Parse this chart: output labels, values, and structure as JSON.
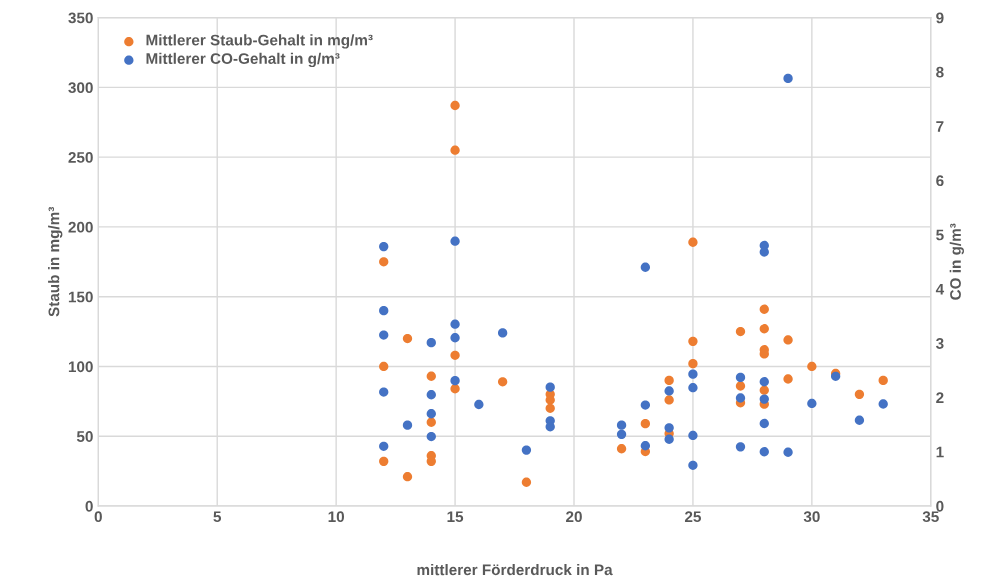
{
  "chart_data": {
    "type": "scatter",
    "xlabel": "mittlerer Förderdruck in Pa",
    "ylabel": "Staub in mg/m³",
    "y2label": "CO in g/m³",
    "xlim": [
      0,
      35
    ],
    "xticks": [
      0,
      5,
      10,
      15,
      20,
      25,
      30,
      35
    ],
    "ylim": [
      0,
      350
    ],
    "yticks": [
      0,
      50,
      100,
      150,
      200,
      250,
      300,
      350
    ],
    "y2lim": [
      0,
      9
    ],
    "y2ticks": [
      0,
      1,
      2,
      3,
      4,
      5,
      6,
      7,
      8,
      9
    ],
    "grid": true,
    "legend": "top left",
    "marker": "circle",
    "series": [
      {
        "name": "Mittlerer Staub-Gehalt in mg/m³",
        "color": "#ed7d31",
        "axis": "y",
        "x": [
          12,
          12,
          12,
          13,
          13,
          14,
          14,
          14,
          14,
          15,
          15,
          15,
          15,
          17,
          18,
          19,
          19,
          19,
          22,
          23,
          23,
          24,
          24,
          24,
          25,
          25,
          25,
          27,
          27,
          27,
          28,
          28,
          28,
          28,
          28,
          28,
          29,
          29,
          30,
          31,
          32,
          33
        ],
        "values": [
          175,
          100,
          32,
          120,
          21,
          93,
          60,
          36,
          32,
          287,
          255,
          108,
          84,
          89,
          17,
          80,
          76,
          70,
          41,
          59,
          39,
          90,
          76,
          52,
          189,
          118,
          102,
          125,
          86,
          74,
          141,
          127,
          112,
          109,
          83,
          73,
          119,
          91,
          100,
          95,
          80,
          90
        ]
      },
      {
        "name": "Mittlerer CO-Gehalt in g/m³",
        "color": "#4472c4",
        "axis": "y2",
        "x": [
          12,
          12,
          12,
          12,
          12,
          13,
          14,
          14,
          14,
          14,
          15,
          15,
          15,
          15,
          16,
          17,
          18,
          19,
          19,
          19,
          22,
          22,
          23,
          23,
          23,
          24,
          24,
          24,
          25,
          25,
          25,
          25,
          27,
          27,
          27,
          28,
          28,
          28,
          28,
          28,
          28,
          29,
          29,
          30,
          31,
          32,
          33
        ],
        "values": [
          4.78,
          3.6,
          3.15,
          2.1,
          1.1,
          1.49,
          3.01,
          2.05,
          1.7,
          1.28,
          4.88,
          3.35,
          3.1,
          2.31,
          1.87,
          3.19,
          1.03,
          2.19,
          1.57,
          1.46,
          1.49,
          1.32,
          4.4,
          1.86,
          1.11,
          2.12,
          1.44,
          1.23,
          2.43,
          2.18,
          1.3,
          0.75,
          2.37,
          1.99,
          1.09,
          4.8,
          4.68,
          2.29,
          1.97,
          1.52,
          1.0,
          7.88,
          0.99,
          1.89,
          2.39,
          1.58,
          1.88
        ]
      }
    ]
  }
}
